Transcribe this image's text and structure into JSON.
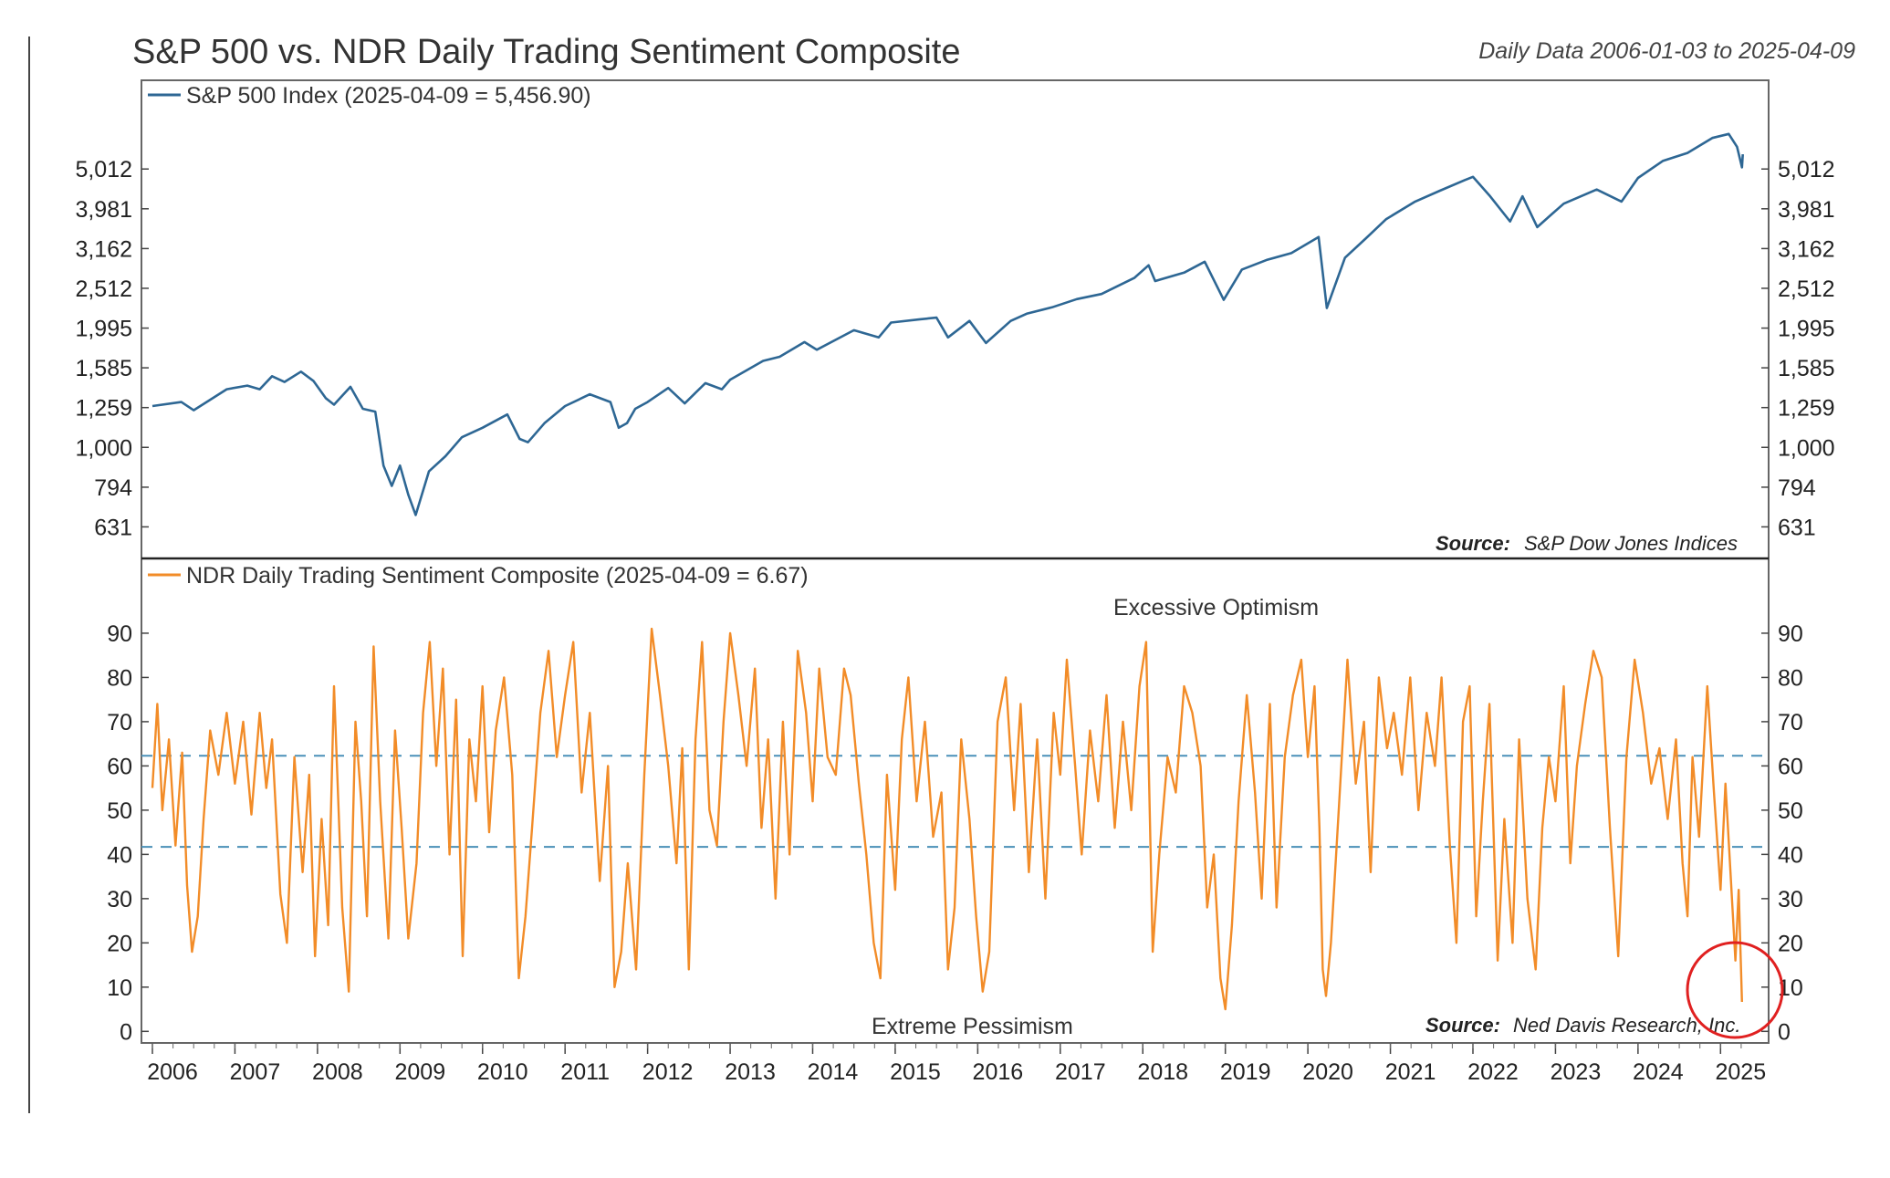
{
  "header": {
    "title": "S&P 500 vs. NDR Daily Trading Sentiment Composite",
    "date_range": "Daily Data 2006-01-03 to 2025-04-09"
  },
  "chart_data": [
    {
      "type": "line",
      "legend": "S&P 500 Index (2025-04-09 = 5,456.90)",
      "series_color": "#2e6794",
      "scale": "log",
      "ylim": [
        560,
        7000
      ],
      "yticks": [
        631,
        794,
        1000,
        1259,
        1585,
        1995,
        2512,
        3162,
        3981,
        5012
      ],
      "ytick_labels": [
        "631",
        "794",
        "1,000",
        "1,259",
        "1,585",
        "1,995",
        "2,512",
        "3,162",
        "3,981",
        "5,012"
      ],
      "source_label": "Source:",
      "source_text": "S&P Dow Jones Indices",
      "points": [
        [
          2006.0,
          1270
        ],
        [
          2006.35,
          1300
        ],
        [
          2006.5,
          1240
        ],
        [
          2006.9,
          1400
        ],
        [
          2007.15,
          1430
        ],
        [
          2007.3,
          1400
        ],
        [
          2007.45,
          1510
        ],
        [
          2007.6,
          1460
        ],
        [
          2007.8,
          1550
        ],
        [
          2007.95,
          1470
        ],
        [
          2008.1,
          1330
        ],
        [
          2008.2,
          1280
        ],
        [
          2008.4,
          1420
        ],
        [
          2008.55,
          1250
        ],
        [
          2008.7,
          1230
        ],
        [
          2008.8,
          900
        ],
        [
          2008.9,
          800
        ],
        [
          2009.0,
          900
        ],
        [
          2009.1,
          760
        ],
        [
          2009.19,
          676
        ],
        [
          2009.35,
          870
        ],
        [
          2009.55,
          950
        ],
        [
          2009.75,
          1060
        ],
        [
          2010.0,
          1120
        ],
        [
          2010.3,
          1210
        ],
        [
          2010.45,
          1050
        ],
        [
          2010.55,
          1030
        ],
        [
          2010.75,
          1150
        ],
        [
          2011.0,
          1270
        ],
        [
          2011.3,
          1360
        ],
        [
          2011.55,
          1300
        ],
        [
          2011.65,
          1120
        ],
        [
          2011.75,
          1150
        ],
        [
          2011.85,
          1250
        ],
        [
          2012.0,
          1300
        ],
        [
          2012.25,
          1410
        ],
        [
          2012.45,
          1290
        ],
        [
          2012.7,
          1450
        ],
        [
          2012.9,
          1400
        ],
        [
          2013.0,
          1480
        ],
        [
          2013.4,
          1650
        ],
        [
          2013.6,
          1690
        ],
        [
          2013.9,
          1840
        ],
        [
          2014.05,
          1760
        ],
        [
          2014.5,
          1970
        ],
        [
          2014.8,
          1890
        ],
        [
          2014.95,
          2060
        ],
        [
          2015.3,
          2100
        ],
        [
          2015.5,
          2120
        ],
        [
          2015.64,
          1890
        ],
        [
          2015.9,
          2080
        ],
        [
          2016.1,
          1830
        ],
        [
          2016.4,
          2080
        ],
        [
          2016.6,
          2170
        ],
        [
          2016.9,
          2250
        ],
        [
          2017.2,
          2360
        ],
        [
          2017.5,
          2430
        ],
        [
          2017.9,
          2670
        ],
        [
          2018.07,
          2870
        ],
        [
          2018.15,
          2620
        ],
        [
          2018.5,
          2750
        ],
        [
          2018.75,
          2930
        ],
        [
          2018.98,
          2350
        ],
        [
          2019.2,
          2800
        ],
        [
          2019.5,
          2960
        ],
        [
          2019.8,
          3080
        ],
        [
          2020.13,
          3380
        ],
        [
          2020.23,
          2240
        ],
        [
          2020.45,
          3000
        ],
        [
          2020.7,
          3350
        ],
        [
          2020.95,
          3750
        ],
        [
          2021.3,
          4150
        ],
        [
          2021.6,
          4420
        ],
        [
          2021.9,
          4700
        ],
        [
          2022.0,
          4790
        ],
        [
          2022.2,
          4300
        ],
        [
          2022.45,
          3700
        ],
        [
          2022.6,
          4280
        ],
        [
          2022.78,
          3580
        ],
        [
          2022.95,
          3850
        ],
        [
          2023.1,
          4100
        ],
        [
          2023.5,
          4450
        ],
        [
          2023.8,
          4150
        ],
        [
          2024.0,
          4760
        ],
        [
          2024.3,
          5250
        ],
        [
          2024.6,
          5500
        ],
        [
          2024.9,
          6000
        ],
        [
          2025.1,
          6140
        ],
        [
          2025.2,
          5700
        ],
        [
          2025.26,
          5060
        ],
        [
          2025.27,
          5456.9
        ]
      ]
    },
    {
      "type": "line",
      "legend": "NDR Daily Trading Sentiment Composite (2025-04-09 = 6.67)",
      "series_color": "#f28c28",
      "ylim": [
        -2,
        97
      ],
      "yticks": [
        0,
        10,
        20,
        30,
        40,
        50,
        60,
        70,
        80,
        90
      ],
      "ytick_labels": [
        "0",
        "10",
        "20",
        "30",
        "40",
        "50",
        "60",
        "70",
        "80",
        "90"
      ],
      "xlim": [
        2006.0,
        2025.45
      ],
      "xticks": [
        2006,
        2007,
        2008,
        2009,
        2010,
        2011,
        2012,
        2013,
        2014,
        2015,
        2016,
        2017,
        2018,
        2019,
        2020,
        2021,
        2022,
        2023,
        2024,
        2025
      ],
      "xtick_labels": [
        "2006",
        "2007",
        "2008",
        "2009",
        "2010",
        "2011",
        "2012",
        "2013",
        "2014",
        "2015",
        "2016",
        "2017",
        "2018",
        "2019",
        "2020",
        "2021",
        "2022",
        "2023",
        "2024",
        "2025"
      ],
      "threshold_upper": 62.3,
      "threshold_lower": 41.7,
      "threshold_color": "#4a90b8",
      "zone_upper_label": "Excessive Optimism",
      "zone_lower_label": "Extreme Pessimism",
      "source_label": "Source:",
      "source_text": "Ned Davis Research, Inc.",
      "highlight_color": "#e02020",
      "points": [
        [
          2006.0,
          55
        ],
        [
          2006.06,
          74
        ],
        [
          2006.12,
          50
        ],
        [
          2006.2,
          66
        ],
        [
          2006.28,
          42
        ],
        [
          2006.36,
          63
        ],
        [
          2006.42,
          33
        ],
        [
          2006.48,
          18
        ],
        [
          2006.55,
          26
        ],
        [
          2006.62,
          48
        ],
        [
          2006.7,
          68
        ],
        [
          2006.8,
          58
        ],
        [
          2006.9,
          72
        ],
        [
          2007.0,
          56
        ],
        [
          2007.1,
          70
        ],
        [
          2007.2,
          49
        ],
        [
          2007.3,
          72
        ],
        [
          2007.38,
          55
        ],
        [
          2007.45,
          66
        ],
        [
          2007.55,
          31
        ],
        [
          2007.63,
          20
        ],
        [
          2007.72,
          62
        ],
        [
          2007.82,
          36
        ],
        [
          2007.9,
          58
        ],
        [
          2007.97,
          17
        ],
        [
          2008.05,
          48
        ],
        [
          2008.13,
          24
        ],
        [
          2008.2,
          78
        ],
        [
          2008.3,
          28
        ],
        [
          2008.38,
          9
        ],
        [
          2008.46,
          70
        ],
        [
          2008.53,
          52
        ],
        [
          2008.6,
          26
        ],
        [
          2008.68,
          87
        ],
        [
          2008.76,
          52
        ],
        [
          2008.86,
          21
        ],
        [
          2008.94,
          68
        ],
        [
          2009.02,
          46
        ],
        [
          2009.1,
          21
        ],
        [
          2009.2,
          38
        ],
        [
          2009.28,
          72
        ],
        [
          2009.36,
          88
        ],
        [
          2009.44,
          60
        ],
        [
          2009.52,
          82
        ],
        [
          2009.6,
          40
        ],
        [
          2009.68,
          75
        ],
        [
          2009.76,
          17
        ],
        [
          2009.84,
          66
        ],
        [
          2009.92,
          52
        ],
        [
          2010.0,
          78
        ],
        [
          2010.08,
          45
        ],
        [
          2010.16,
          68
        ],
        [
          2010.26,
          80
        ],
        [
          2010.36,
          58
        ],
        [
          2010.44,
          12
        ],
        [
          2010.52,
          26
        ],
        [
          2010.6,
          46
        ],
        [
          2010.7,
          72
        ],
        [
          2010.8,
          86
        ],
        [
          2010.9,
          62
        ],
        [
          2011.0,
          76
        ],
        [
          2011.1,
          88
        ],
        [
          2011.2,
          54
        ],
        [
          2011.3,
          72
        ],
        [
          2011.42,
          34
        ],
        [
          2011.52,
          60
        ],
        [
          2011.6,
          10
        ],
        [
          2011.68,
          18
        ],
        [
          2011.76,
          38
        ],
        [
          2011.86,
          14
        ],
        [
          2011.96,
          58
        ],
        [
          2012.05,
          91
        ],
        [
          2012.15,
          76
        ],
        [
          2012.25,
          60
        ],
        [
          2012.35,
          38
        ],
        [
          2012.42,
          64
        ],
        [
          2012.5,
          14
        ],
        [
          2012.58,
          66
        ],
        [
          2012.66,
          88
        ],
        [
          2012.75,
          50
        ],
        [
          2012.84,
          42
        ],
        [
          2012.92,
          70
        ],
        [
          2013.0,
          90
        ],
        [
          2013.1,
          76
        ],
        [
          2013.2,
          60
        ],
        [
          2013.3,
          82
        ],
        [
          2013.38,
          46
        ],
        [
          2013.46,
          66
        ],
        [
          2013.55,
          30
        ],
        [
          2013.64,
          70
        ],
        [
          2013.72,
          40
        ],
        [
          2013.82,
          86
        ],
        [
          2013.92,
          72
        ],
        [
          2014.0,
          52
        ],
        [
          2014.08,
          82
        ],
        [
          2014.18,
          62
        ],
        [
          2014.28,
          58
        ],
        [
          2014.38,
          82
        ],
        [
          2014.46,
          76
        ],
        [
          2014.56,
          56
        ],
        [
          2014.65,
          40
        ],
        [
          2014.74,
          20
        ],
        [
          2014.82,
          12
        ],
        [
          2014.9,
          58
        ],
        [
          2015.0,
          32
        ],
        [
          2015.08,
          66
        ],
        [
          2015.16,
          80
        ],
        [
          2015.26,
          52
        ],
        [
          2015.36,
          70
        ],
        [
          2015.46,
          44
        ],
        [
          2015.56,
          54
        ],
        [
          2015.64,
          14
        ],
        [
          2015.72,
          28
        ],
        [
          2015.8,
          66
        ],
        [
          2015.9,
          48
        ],
        [
          2015.98,
          26
        ],
        [
          2016.06,
          9
        ],
        [
          2016.14,
          18
        ],
        [
          2016.24,
          70
        ],
        [
          2016.34,
          80
        ],
        [
          2016.44,
          50
        ],
        [
          2016.52,
          74
        ],
        [
          2016.62,
          36
        ],
        [
          2016.72,
          66
        ],
        [
          2016.82,
          30
        ],
        [
          2016.92,
          72
        ],
        [
          2017.0,
          58
        ],
        [
          2017.08,
          84
        ],
        [
          2017.18,
          60
        ],
        [
          2017.26,
          40
        ],
        [
          2017.36,
          68
        ],
        [
          2017.46,
          52
        ],
        [
          2017.56,
          76
        ],
        [
          2017.66,
          46
        ],
        [
          2017.76,
          70
        ],
        [
          2017.86,
          50
        ],
        [
          2017.96,
          78
        ],
        [
          2018.04,
          88
        ],
        [
          2018.12,
          18
        ],
        [
          2018.2,
          40
        ],
        [
          2018.3,
          62
        ],
        [
          2018.4,
          54
        ],
        [
          2018.5,
          78
        ],
        [
          2018.6,
          72
        ],
        [
          2018.7,
          60
        ],
        [
          2018.78,
          28
        ],
        [
          2018.86,
          40
        ],
        [
          2018.94,
          12
        ],
        [
          2019.0,
          5
        ],
        [
          2019.08,
          24
        ],
        [
          2019.16,
          52
        ],
        [
          2019.26,
          76
        ],
        [
          2019.36,
          54
        ],
        [
          2019.44,
          30
        ],
        [
          2019.54,
          74
        ],
        [
          2019.62,
          28
        ],
        [
          2019.72,
          62
        ],
        [
          2019.82,
          76
        ],
        [
          2019.92,
          84
        ],
        [
          2020.0,
          62
        ],
        [
          2020.08,
          78
        ],
        [
          2020.14,
          46
        ],
        [
          2020.18,
          14
        ],
        [
          2020.22,
          8
        ],
        [
          2020.28,
          20
        ],
        [
          2020.38,
          52
        ],
        [
          2020.48,
          84
        ],
        [
          2020.58,
          56
        ],
        [
          2020.68,
          70
        ],
        [
          2020.76,
          36
        ],
        [
          2020.86,
          80
        ],
        [
          2020.96,
          64
        ],
        [
          2021.04,
          72
        ],
        [
          2021.14,
          58
        ],
        [
          2021.24,
          80
        ],
        [
          2021.34,
          50
        ],
        [
          2021.44,
          72
        ],
        [
          2021.54,
          60
        ],
        [
          2021.62,
          80
        ],
        [
          2021.72,
          42
        ],
        [
          2021.8,
          20
        ],
        [
          2021.88,
          70
        ],
        [
          2021.96,
          78
        ],
        [
          2022.04,
          26
        ],
        [
          2022.12,
          52
        ],
        [
          2022.2,
          74
        ],
        [
          2022.3,
          16
        ],
        [
          2022.38,
          48
        ],
        [
          2022.48,
          20
        ],
        [
          2022.56,
          66
        ],
        [
          2022.66,
          30
        ],
        [
          2022.76,
          14
        ],
        [
          2022.84,
          46
        ],
        [
          2022.92,
          62
        ],
        [
          2023.0,
          52
        ],
        [
          2023.1,
          78
        ],
        [
          2023.18,
          38
        ],
        [
          2023.26,
          60
        ],
        [
          2023.36,
          74
        ],
        [
          2023.46,
          86
        ],
        [
          2023.56,
          80
        ],
        [
          2023.66,
          46
        ],
        [
          2023.76,
          17
        ],
        [
          2023.86,
          62
        ],
        [
          2023.96,
          84
        ],
        [
          2024.06,
          72
        ],
        [
          2024.16,
          56
        ],
        [
          2024.26,
          64
        ],
        [
          2024.36,
          48
        ],
        [
          2024.46,
          66
        ],
        [
          2024.54,
          38
        ],
        [
          2024.6,
          26
        ],
        [
          2024.66,
          62
        ],
        [
          2024.74,
          44
        ],
        [
          2024.84,
          78
        ],
        [
          2024.92,
          54
        ],
        [
          2025.0,
          32
        ],
        [
          2025.06,
          56
        ],
        [
          2025.12,
          36
        ],
        [
          2025.18,
          16
        ],
        [
          2025.22,
          32
        ],
        [
          2025.26,
          6.67
        ]
      ]
    }
  ]
}
